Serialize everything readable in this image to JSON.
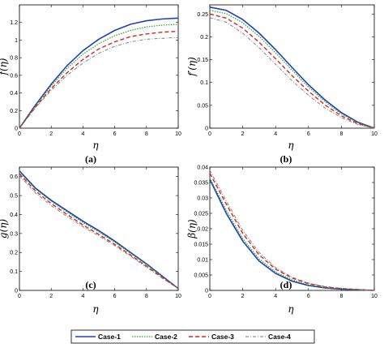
{
  "chart_data": [
    {
      "type": "line",
      "xlabel": "η",
      "ylabel": "f(η)",
      "panel_label": "(a)",
      "xlim": [
        0,
        10
      ],
      "ylim": [
        0,
        1.4
      ],
      "xticks": [
        "0",
        "2",
        "4",
        "6",
        "8",
        "10"
      ],
      "yticks": [
        "0",
        "0.2",
        "0.4",
        "0.6",
        "0.8",
        "1",
        "1.2"
      ],
      "x": [
        0,
        1,
        2,
        3,
        4,
        5,
        6,
        7,
        8,
        9,
        10
      ],
      "series": [
        {
          "name": "Case-1",
          "values": [
            0,
            0.26,
            0.5,
            0.71,
            0.88,
            1.01,
            1.11,
            1.18,
            1.22,
            1.24,
            1.25
          ]
        },
        {
          "name": "Case-2",
          "values": [
            0,
            0.25,
            0.48,
            0.68,
            0.84,
            0.96,
            1.05,
            1.11,
            1.15,
            1.17,
            1.18
          ]
        },
        {
          "name": "Case-3",
          "values": [
            0,
            0.24,
            0.45,
            0.63,
            0.78,
            0.9,
            0.98,
            1.04,
            1.07,
            1.09,
            1.1
          ]
        },
        {
          "name": "Case-4",
          "values": [
            0,
            0.23,
            0.43,
            0.6,
            0.74,
            0.85,
            0.93,
            0.98,
            1.01,
            1.02,
            1.03
          ]
        }
      ]
    },
    {
      "type": "line",
      "xlabel": "η",
      "ylabel": "f′(η)",
      "panel_label": "(b)",
      "xlim": [
        0,
        10
      ],
      "ylim": [
        0,
        0.27
      ],
      "xticks": [
        "0",
        "2",
        "4",
        "6",
        "8",
        "10"
      ],
      "yticks": [
        "0",
        "0.05",
        "0.1",
        "0.15",
        "0.2",
        "0.25"
      ],
      "x": [
        0,
        1,
        2,
        3,
        4,
        5,
        6,
        7,
        8,
        9,
        10
      ],
      "series": [
        {
          "name": "Case-1",
          "values": [
            0.265,
            0.258,
            0.238,
            0.208,
            0.172,
            0.133,
            0.095,
            0.062,
            0.034,
            0.013,
            0
          ]
        },
        {
          "name": "Case-2",
          "values": [
            0.258,
            0.251,
            0.231,
            0.201,
            0.165,
            0.127,
            0.09,
            0.058,
            0.031,
            0.012,
            0
          ]
        },
        {
          "name": "Case-3",
          "values": [
            0.25,
            0.241,
            0.219,
            0.188,
            0.152,
            0.115,
            0.081,
            0.051,
            0.027,
            0.01,
            0
          ]
        },
        {
          "name": "Case-4",
          "values": [
            0.242,
            0.232,
            0.208,
            0.176,
            0.14,
            0.104,
            0.072,
            0.044,
            0.023,
            0.008,
            0
          ]
        }
      ]
    },
    {
      "type": "line",
      "xlabel": "η",
      "ylabel": "g(η)",
      "panel_label": "(c)",
      "xlim": [
        0,
        10
      ],
      "ylim": [
        0,
        0.65
      ],
      "xticks": [
        "0",
        "2",
        "4",
        "6",
        "8",
        "10"
      ],
      "yticks": [
        "0",
        "0.1",
        "0.2",
        "0.3",
        "0.4",
        "0.5",
        "0.6"
      ],
      "x": [
        0,
        1,
        2,
        3,
        4,
        5,
        6,
        7,
        8,
        9,
        10
      ],
      "series": [
        {
          "name": "Case-1",
          "values": [
            0.63,
            0.54,
            0.475,
            0.42,
            0.365,
            0.315,
            0.26,
            0.2,
            0.14,
            0.075,
            0.01
          ]
        },
        {
          "name": "Case-2",
          "values": [
            0.625,
            0.535,
            0.47,
            0.413,
            0.358,
            0.308,
            0.254,
            0.195,
            0.136,
            0.072,
            0.01
          ]
        },
        {
          "name": "Case-3",
          "values": [
            0.615,
            0.525,
            0.458,
            0.4,
            0.345,
            0.295,
            0.243,
            0.186,
            0.128,
            0.067,
            0.01
          ]
        },
        {
          "name": "Case-4",
          "values": [
            0.605,
            0.515,
            0.447,
            0.39,
            0.336,
            0.287,
            0.236,
            0.18,
            0.123,
            0.064,
            0.01
          ]
        }
      ]
    },
    {
      "type": "line",
      "xlabel": "η",
      "ylabel": "β(η)",
      "panel_label": "(d)",
      "xlim": [
        0,
        10
      ],
      "ylim": [
        0,
        0.04
      ],
      "xticks": [
        "0",
        "2",
        "4",
        "6",
        "8",
        "10"
      ],
      "yticks": [
        "0",
        "0.005",
        "0.01",
        "0.015",
        "0.02",
        "0.025",
        "0.03",
        "0.035",
        "0.04"
      ],
      "x": [
        0,
        1,
        2,
        3,
        4,
        5,
        6,
        7,
        8,
        9,
        10
      ],
      "series": [
        {
          "name": "Case-1",
          "values": [
            0.036,
            0.025,
            0.016,
            0.0095,
            0.0055,
            0.003,
            0.0016,
            0.0008,
            0.0004,
            0.0002,
            0
          ]
        },
        {
          "name": "Case-2",
          "values": [
            0.0365,
            0.026,
            0.0168,
            0.0102,
            0.006,
            0.0034,
            0.0018,
            0.0009,
            0.0005,
            0.0002,
            0
          ]
        },
        {
          "name": "Case-3",
          "values": [
            0.038,
            0.028,
            0.0185,
            0.0115,
            0.0069,
            0.004,
            0.0022,
            0.0011,
            0.0006,
            0.0003,
            0
          ]
        },
        {
          "name": "Case-4",
          "values": [
            0.039,
            0.029,
            0.0195,
            0.0123,
            0.0074,
            0.0043,
            0.0024,
            0.0013,
            0.0007,
            0.0003,
            0
          ]
        }
      ]
    }
  ],
  "legend": {
    "placement": "bottom",
    "entries": [
      {
        "label": "Case-1",
        "color": "#1f3fbf",
        "dash": "solid"
      },
      {
        "label": "Case-2",
        "color": "#22aa22",
        "dash": "dotted"
      },
      {
        "label": "Case-3",
        "color": "#e02020",
        "dash": "dashed"
      },
      {
        "label": "Case-4",
        "color": "#777777",
        "dash": "dashdot"
      }
    ]
  }
}
